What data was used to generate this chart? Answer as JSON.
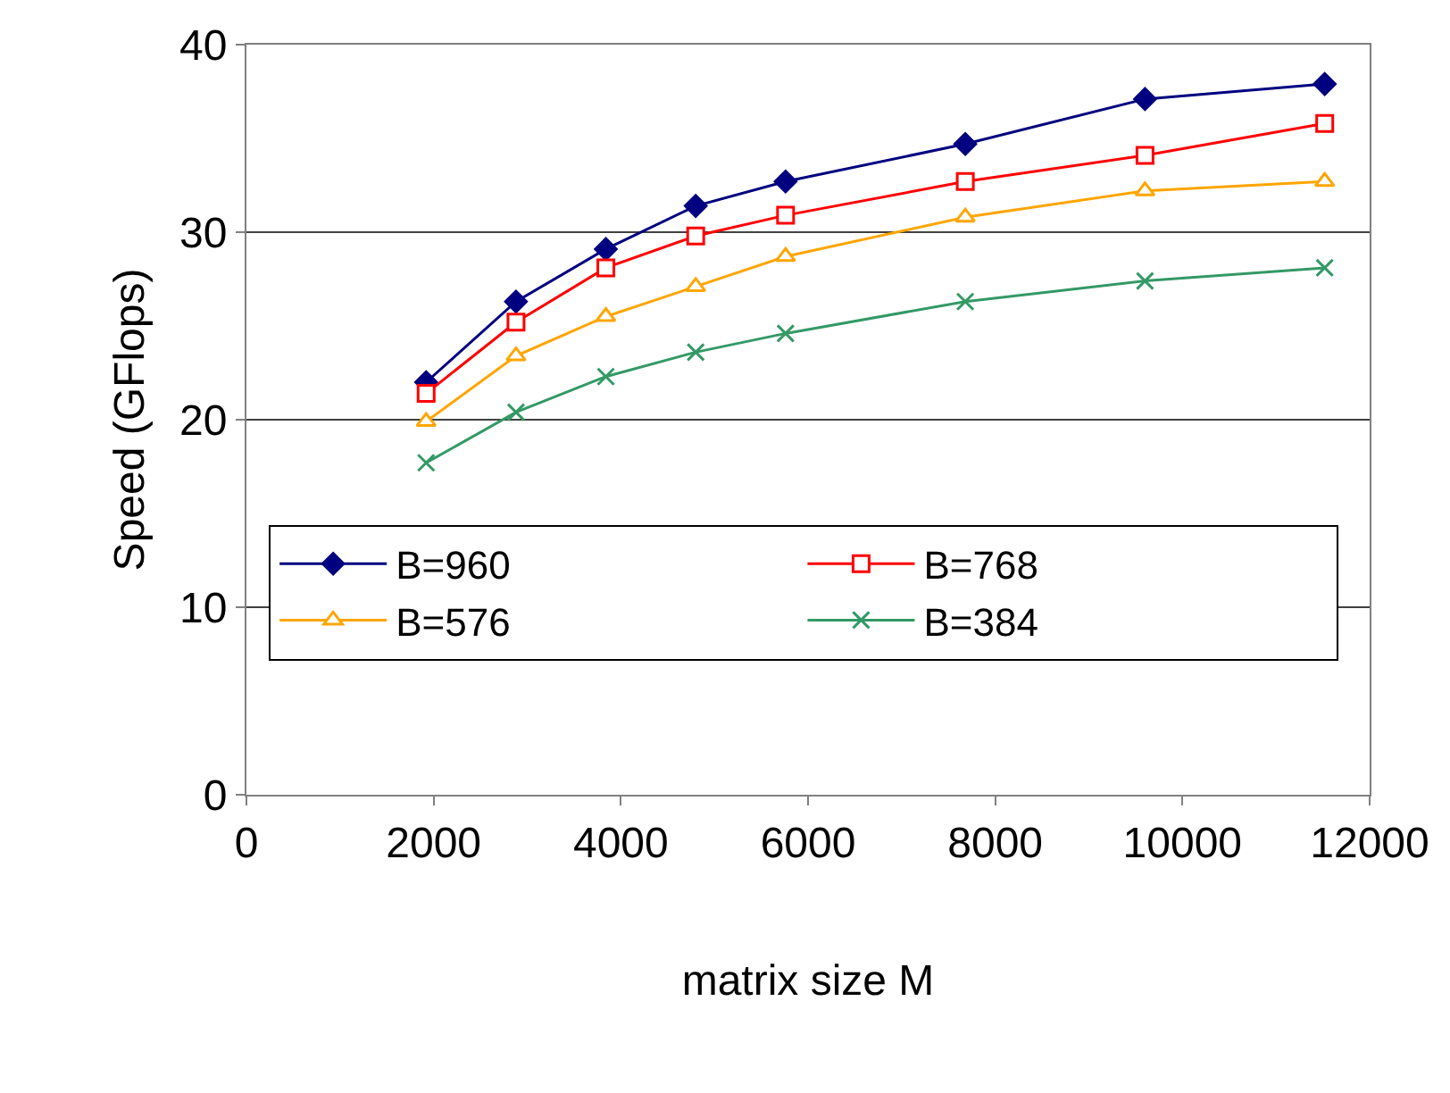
{
  "chart_data": {
    "type": "line",
    "xlabel": "matrix size M",
    "ylabel": "Speed (GFlops)",
    "x": [
      1920,
      2880,
      3840,
      4800,
      5760,
      7680,
      9600,
      11520
    ],
    "series": [
      {
        "name": "B=960",
        "color": "#000080",
        "marker": "diamond",
        "values": [
          22.0,
          26.3,
          29.1,
          31.4,
          32.7,
          34.7,
          37.1,
          37.9
        ]
      },
      {
        "name": "B=768",
        "color": "#ff0000",
        "marker": "square",
        "values": [
          21.4,
          25.2,
          28.1,
          29.8,
          30.9,
          32.7,
          34.1,
          35.8
        ]
      },
      {
        "name": "B=576",
        "color": "#ffa500",
        "marker": "triangle",
        "values": [
          19.9,
          23.4,
          25.5,
          27.1,
          28.7,
          30.8,
          32.2,
          32.7
        ]
      },
      {
        "name": "B=384",
        "color": "#339966",
        "marker": "cross",
        "values": [
          17.7,
          20.4,
          22.3,
          23.6,
          24.6,
          26.3,
          27.4,
          28.1
        ]
      }
    ],
    "xlim": [
      0,
      12000
    ],
    "xticks": [
      0,
      2000,
      4000,
      6000,
      8000,
      10000,
      12000
    ],
    "ylim": [
      0,
      40
    ],
    "yticks": [
      0,
      10,
      20,
      30,
      40
    ],
    "grid": "y",
    "legend": "bottom",
    "line_style": "solid"
  }
}
